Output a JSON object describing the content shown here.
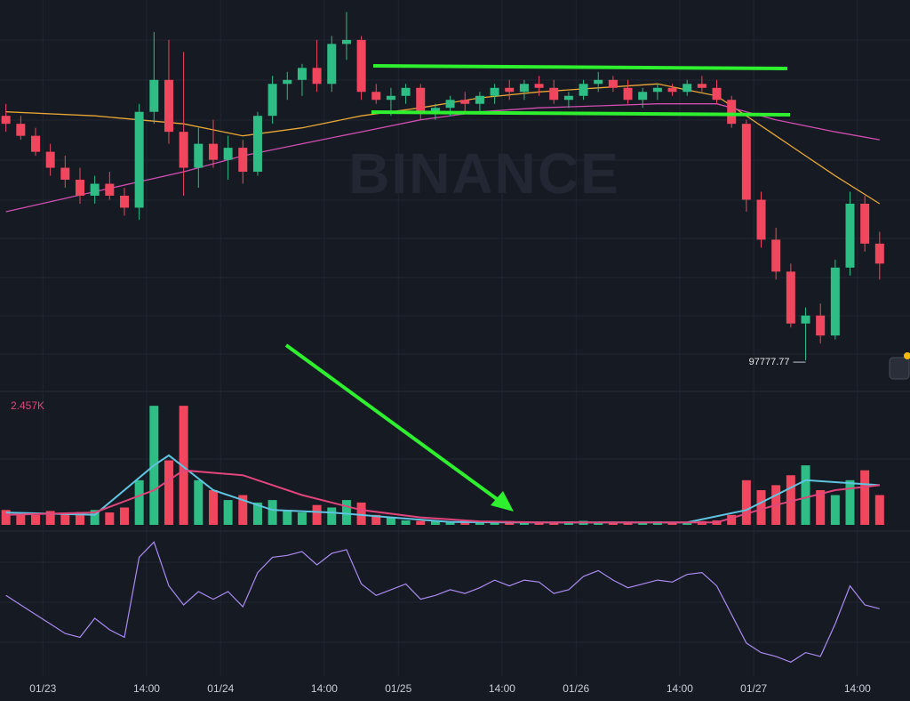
{
  "chart_data": {
    "type": "candlestick",
    "watermark": "BINANCE",
    "low_label": "97777.77",
    "up_color": "#2ebd85",
    "down_color": "#f0475e",
    "xlim": [
      -5.8,
      117.1
    ],
    "xticks": [
      {
        "value": 0,
        "label": "01/23"
      },
      {
        "value": 14,
        "label": "14:00"
      },
      {
        "value": 24,
        "label": "01/24"
      },
      {
        "value": 38,
        "label": "14:00"
      },
      {
        "value": 48,
        "label": "01/25"
      },
      {
        "value": 62,
        "label": "14:00"
      },
      {
        "value": 72,
        "label": "01/26"
      },
      {
        "value": 86,
        "label": "14:00"
      },
      {
        "value": 96,
        "label": "01/27"
      },
      {
        "value": 110,
        "label": "14:00"
      }
    ],
    "ylim": [
      97000,
      106800
    ],
    "x": [
      -5,
      -3,
      -1,
      1,
      3,
      5,
      7,
      9,
      11,
      13,
      15,
      17,
      19,
      21,
      23,
      25,
      27,
      29,
      31,
      33,
      35,
      37,
      39,
      41,
      43,
      45,
      47,
      49,
      51,
      53,
      55,
      57,
      59,
      61,
      63,
      65,
      67,
      69,
      71,
      73,
      75,
      77,
      79,
      81,
      83,
      85,
      87,
      89,
      91,
      93,
      95,
      97,
      99,
      101,
      103,
      105,
      107,
      109,
      111,
      113
    ],
    "open": [
      103900,
      103700,
      103400,
      103000,
      102600,
      102300,
      101900,
      102200,
      101900,
      101600,
      104000,
      104800,
      103500,
      102600,
      103200,
      102800,
      103100,
      102500,
      103900,
      104700,
      104800,
      105100,
      104700,
      105700,
      105800,
      104500,
      104300,
      104400,
      104600,
      104000,
      104100,
      104300,
      104200,
      104400,
      104600,
      104500,
      104700,
      104600,
      104300,
      104400,
      104700,
      104800,
      104600,
      104300,
      104500,
      104600,
      104500,
      104700,
      104600,
      104300,
      103700,
      101800,
      100800,
      100000,
      98700,
      98900,
      98400,
      100100,
      101700,
      100700
    ],
    "high": [
      104200,
      103900,
      103600,
      103200,
      102900,
      102600,
      102400,
      102500,
      102100,
      104200,
      106000,
      105800,
      105500,
      103600,
      103800,
      103400,
      103300,
      104000,
      104900,
      105000,
      105200,
      105800,
      105900,
      106500,
      105900,
      104700,
      104600,
      104700,
      104700,
      104200,
      104400,
      104500,
      104500,
      104700,
      104800,
      104800,
      104900,
      104800,
      104500,
      104800,
      105000,
      104900,
      104800,
      104600,
      104700,
      104700,
      104800,
      104900,
      104800,
      104400,
      103800,
      102000,
      101100,
      100200,
      99100,
      99200,
      100300,
      102000,
      101900,
      101000
    ],
    "low": [
      103500,
      103300,
      102900,
      102400,
      102100,
      101700,
      101700,
      101800,
      101400,
      101300,
      103700,
      103200,
      101900,
      102100,
      102600,
      102300,
      102200,
      102400,
      103700,
      104300,
      104400,
      104500,
      104500,
      105300,
      104300,
      104200,
      103900,
      104200,
      103800,
      103800,
      103900,
      104000,
      104000,
      104200,
      104300,
      104300,
      104400,
      104200,
      104100,
      104300,
      104500,
      104500,
      104200,
      104100,
      104300,
      104400,
      104400,
      104500,
      104200,
      103600,
      101500,
      100600,
      99800,
      98600,
      97777.77,
      98200,
      98300,
      99900,
      100500,
      99800
    ],
    "close": [
      103700,
      103400,
      103000,
      102600,
      102300,
      101900,
      102200,
      101900,
      101600,
      104000,
      104800,
      103500,
      102600,
      103200,
      102800,
      103100,
      102500,
      103900,
      104700,
      104800,
      105100,
      104700,
      105700,
      105800,
      104500,
      104300,
      104400,
      104600,
      104000,
      104100,
      104300,
      104200,
      104400,
      104600,
      104500,
      104700,
      104600,
      104300,
      104400,
      104700,
      104800,
      104600,
      104300,
      104500,
      104600,
      104500,
      104700,
      104600,
      104300,
      103700,
      101800,
      100800,
      100000,
      98700,
      98900,
      98400,
      100100,
      101700,
      100700,
      100200
    ],
    "ma_lines": [
      {
        "color": "#e8a736",
        "x": [
          -5,
          7,
          19,
          27,
          35,
          43,
          51,
          59,
          67,
          75,
          83,
          91,
          99,
          107,
          113
        ],
        "values": [
          104000,
          103900,
          103700,
          103400,
          103600,
          103900,
          104100,
          104350,
          104500,
          104600,
          104700,
          104400,
          103400,
          102400,
          101700
        ]
      },
      {
        "color": "#d04eb0",
        "x": [
          -5,
          7,
          19,
          27,
          35,
          43,
          51,
          59,
          67,
          75,
          83,
          91,
          99,
          107,
          113
        ],
        "values": [
          101500,
          102000,
          102500,
          102900,
          103200,
          103500,
          103800,
          104000,
          104100,
          104150,
          104200,
          104200,
          103800,
          103500,
          103300
        ]
      }
    ],
    "volume": {
      "label": "2.457K",
      "ylim": [
        0,
        2600
      ],
      "values": [
        300,
        250,
        200,
        280,
        220,
        260,
        300,
        250,
        350,
        900,
        2400,
        1300,
        2400,
        900,
        700,
        500,
        600,
        450,
        500,
        300,
        250,
        400,
        350,
        500,
        450,
        200,
        150,
        90,
        80,
        70,
        60,
        80,
        70,
        60,
        75,
        65,
        55,
        60,
        70,
        80,
        60,
        55,
        65,
        60,
        70,
        55,
        60,
        75,
        90,
        200,
        900,
        700,
        800,
        1000,
        1200,
        700,
        600,
        900,
        1100,
        600
      ],
      "ma_lines": [
        {
          "color": "#5fc4e0",
          "x": [
            -5,
            7,
            15,
            17,
            23,
            31,
            39,
            47,
            55,
            63,
            75,
            87,
            95,
            103,
            113
          ],
          "values": [
            250,
            200,
            1200,
            1400,
            700,
            300,
            250,
            150,
            60,
            50,
            50,
            50,
            300,
            900,
            800
          ]
        },
        {
          "color": "#e0457b",
          "x": [
            -5,
            7,
            15,
            19,
            27,
            35,
            43,
            51,
            59,
            67,
            79,
            91,
            99,
            107,
            113
          ],
          "values": [
            200,
            250,
            700,
            1100,
            1000,
            600,
            300,
            150,
            70,
            50,
            50,
            50,
            400,
            700,
            800
          ]
        }
      ]
    },
    "rsi": {
      "color": "#a98bf0",
      "ylim": [
        10,
        80
      ],
      "values": [
        50,
        45,
        40,
        35,
        30,
        28,
        38,
        32,
        28,
        70,
        78,
        55,
        45,
        52,
        48,
        52,
        44,
        62,
        70,
        71,
        73,
        66,
        72,
        74,
        56,
        50,
        53,
        56,
        48,
        50,
        53,
        51,
        54,
        58,
        55,
        58,
        57,
        51,
        53,
        60,
        63,
        58,
        54,
        56,
        58,
        57,
        61,
        62,
        55,
        40,
        25,
        20,
        18,
        15,
        20,
        18,
        35,
        55,
        45,
        43
      ]
    }
  }
}
